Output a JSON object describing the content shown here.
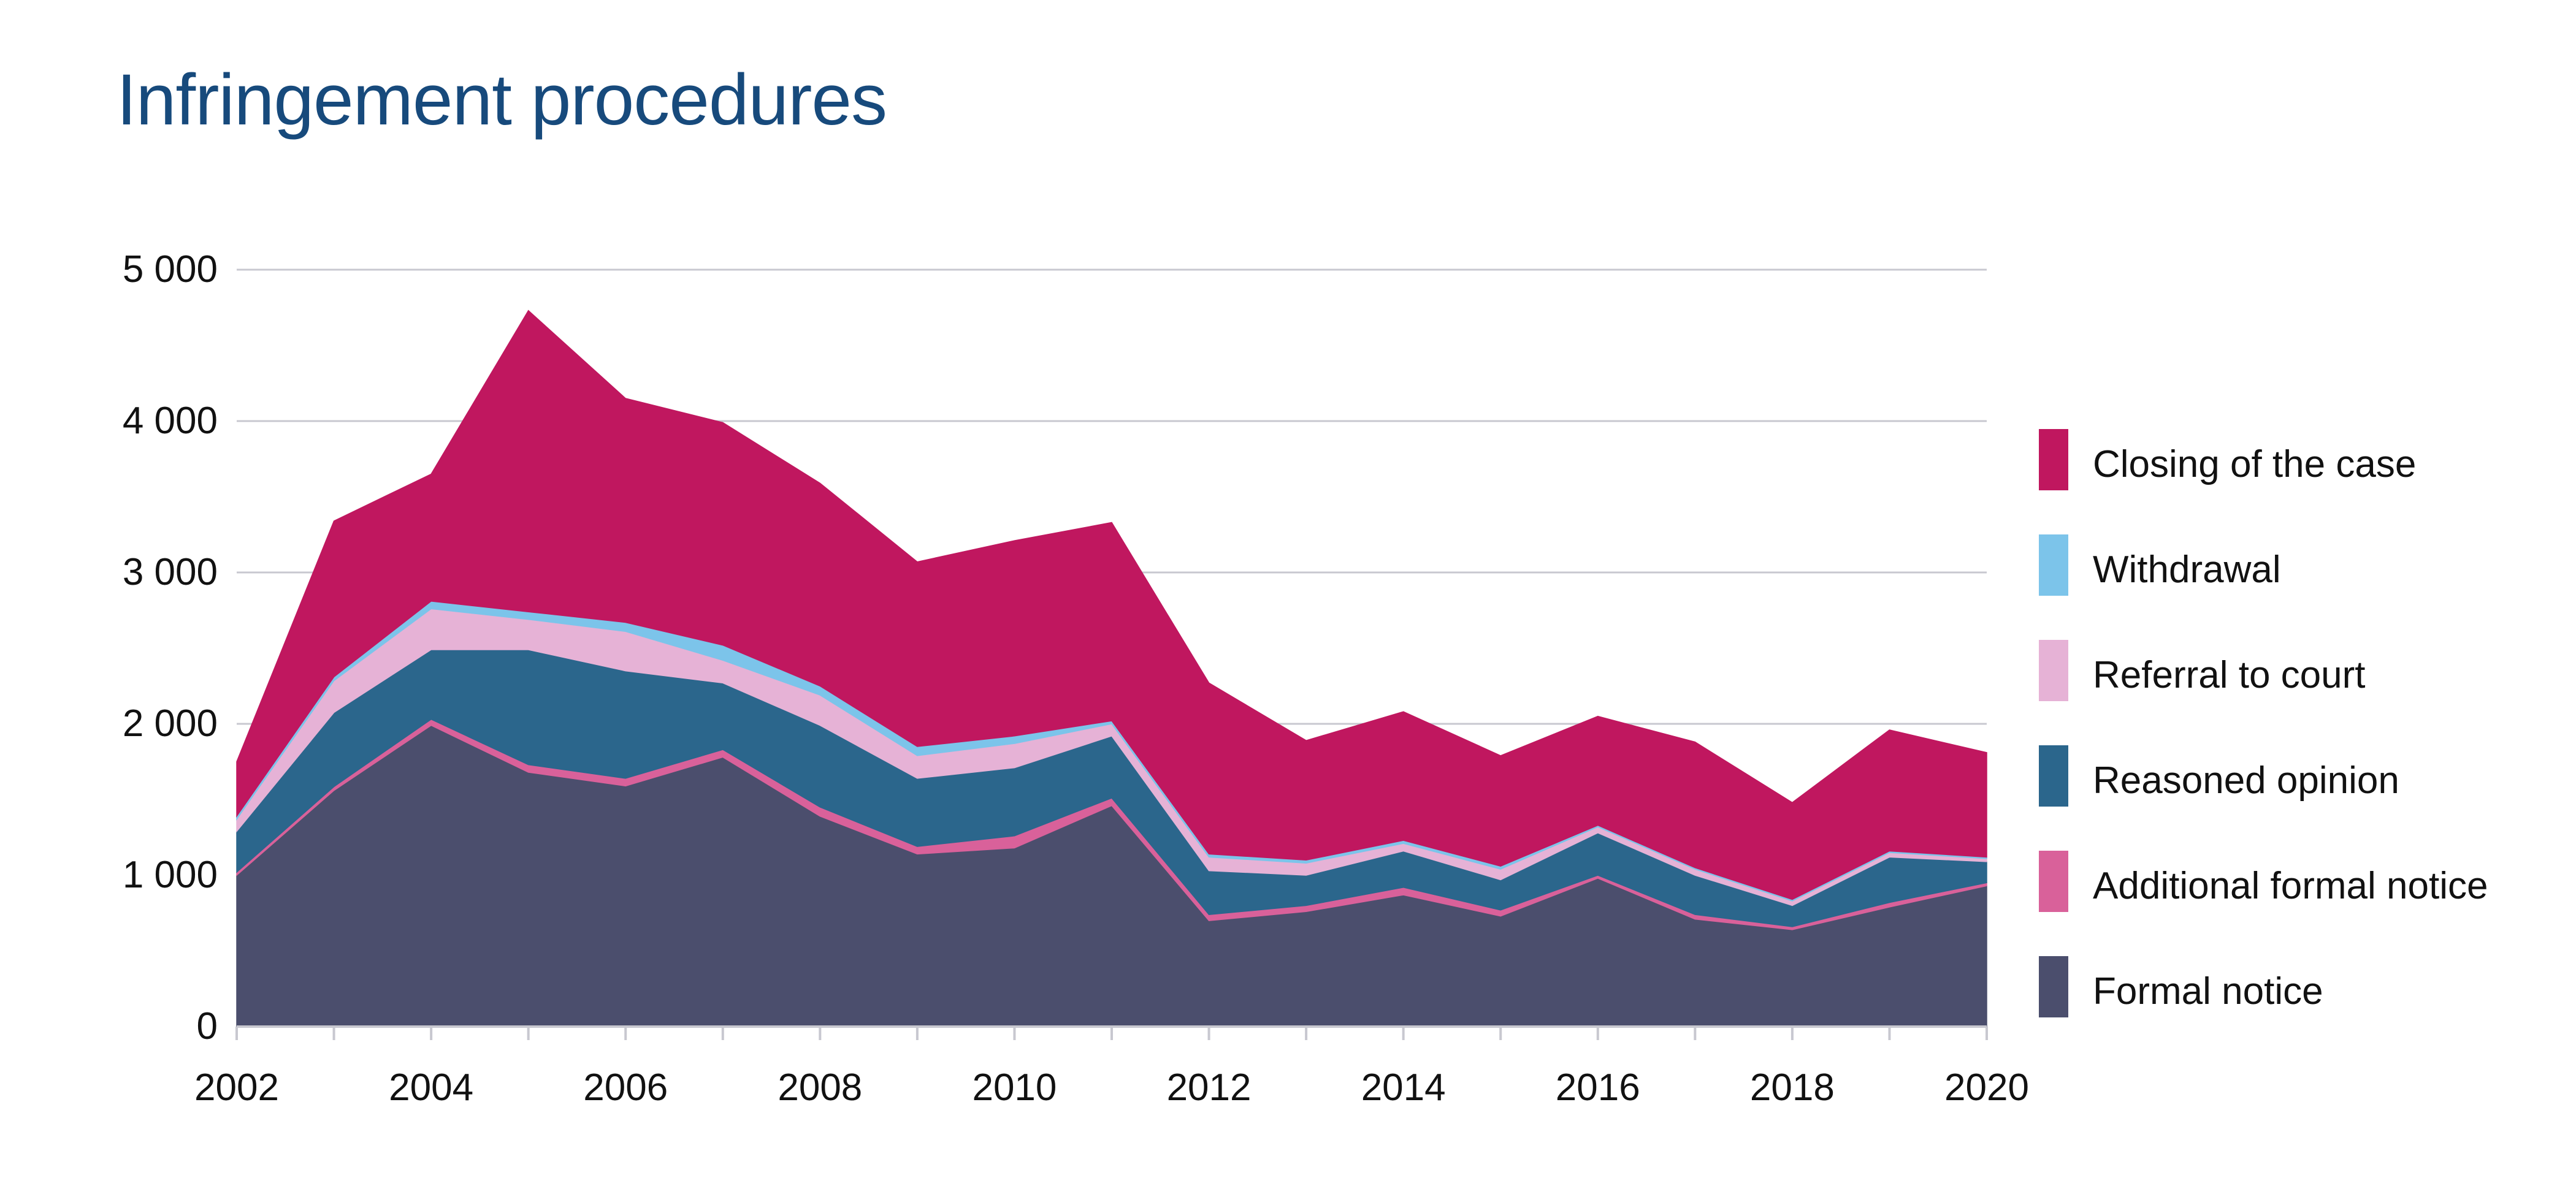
{
  "chart_data": {
    "type": "area",
    "title": "Infringement procedures",
    "x": [
      2002,
      2003,
      2004,
      2005,
      2006,
      2007,
      2008,
      2009,
      2010,
      2011,
      2012,
      2013,
      2014,
      2015,
      2016,
      2017,
      2018,
      2019,
      2020
    ],
    "x_tick_labels": [
      "2002",
      "2004",
      "2006",
      "2008",
      "2010",
      "2012",
      "2014",
      "2016",
      "2018",
      "2020"
    ],
    "y_tick_labels": [
      "0",
      "1 000",
      "2 000",
      "3 000",
      "4 000",
      "5 000"
    ],
    "ylim": [
      0,
      5000
    ],
    "stacked": true,
    "grid": true,
    "legend_position": "right",
    "series": [
      {
        "name": "Formal notice",
        "color": "#4b4e6d",
        "values": [
          1000,
          1560,
          1990,
          1680,
          1590,
          1780,
          1390,
          1140,
          1180,
          1460,
          700,
          760,
          870,
          730,
          980,
          710,
          640,
          790,
          930
        ]
      },
      {
        "name": "Additional formal notice",
        "color": "#d9619a",
        "values": [
          20,
          25,
          40,
          50,
          50,
          50,
          60,
          50,
          80,
          50,
          40,
          40,
          50,
          40,
          20,
          30,
          20,
          30,
          20
        ]
      },
      {
        "name": "Reasoned opinion",
        "color": "#2b668c",
        "values": [
          270,
          490,
          460,
          760,
          710,
          440,
          540,
          450,
          450,
          410,
          290,
          200,
          240,
          200,
          280,
          260,
          140,
          300,
          140
        ]
      },
      {
        "name": "Referral to court",
        "color": "#e6b2d6",
        "values": [
          80,
          210,
          270,
          200,
          260,
          150,
          200,
          150,
          160,
          80,
          90,
          80,
          50,
          70,
          40,
          40,
          30,
          30,
          20
        ]
      },
      {
        "name": "Withdrawal",
        "color": "#7cc4ea",
        "values": [
          20,
          25,
          50,
          50,
          60,
          100,
          60,
          60,
          50,
          20,
          20,
          20,
          20,
          20,
          10,
          10,
          10,
          10,
          10
        ]
      },
      {
        "name": "Closing of the case",
        "color": "#c0175f",
        "values": [
          360,
          1030,
          840,
          1990,
          1480,
          1470,
          1340,
          1220,
          1290,
          1310,
          1130,
          790,
          850,
          730,
          720,
          830,
          640,
          800,
          690
        ]
      }
    ]
  }
}
